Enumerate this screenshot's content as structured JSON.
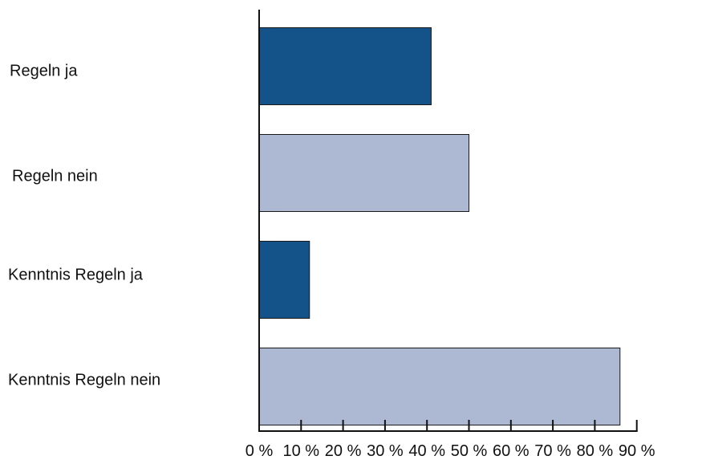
{
  "chart_data": {
    "type": "bar",
    "orientation": "horizontal",
    "categories": [
      "Regeln ja",
      "Regeln nein",
      "Kenntnis Regeln ja",
      "Kenntnis Regeln nein"
    ],
    "values": [
      41,
      50,
      12,
      86
    ],
    "bar_colors": [
      "#13538a",
      "#adb8d2",
      "#13538a",
      "#adb8d2"
    ],
    "xlim": [
      0,
      90
    ],
    "ticks": [
      0,
      10,
      20,
      30,
      40,
      50,
      60,
      70,
      80,
      90
    ],
    "tick_labels": [
      "0 %",
      "10 %",
      "20 %",
      "30 %",
      "40 %",
      "50 %",
      "60 %",
      "70 %",
      "80 %",
      "90 %"
    ],
    "title": "",
    "xlabel": "",
    "ylabel": "",
    "grid": false,
    "legend": "none"
  }
}
